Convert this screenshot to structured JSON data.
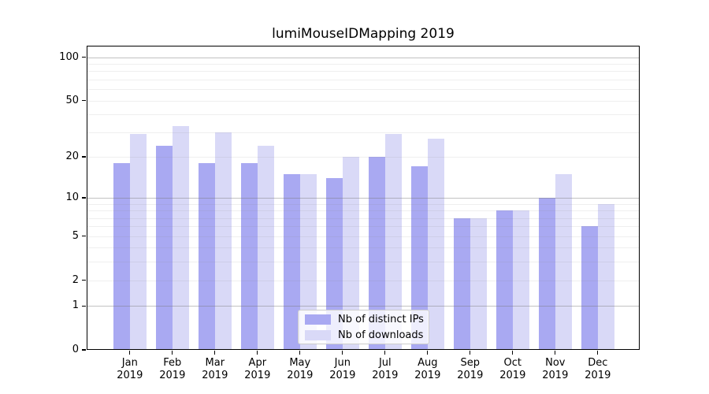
{
  "page": {
    "background": "#ffffff"
  },
  "chart_data": {
    "type": "bar",
    "title": "lumiMouseIDMapping 2019",
    "categories": [
      "Jan 2019",
      "Feb 2019",
      "Mar 2019",
      "Apr 2019",
      "May 2019",
      "Jun 2019",
      "Jul 2019",
      "Aug 2019",
      "Sep 2019",
      "Oct 2019",
      "Nov 2019",
      "Dec 2019"
    ],
    "series": [
      {
        "name": "Nb of distinct IPs",
        "color": "#a9a9f2",
        "values": [
          18,
          24,
          18,
          18,
          15,
          14,
          20,
          17,
          7,
          8,
          10,
          6
        ]
      },
      {
        "name": "Nb of downloads",
        "color": "#d9d9f7",
        "values": [
          29,
          33,
          30,
          24,
          15,
          20,
          29,
          27,
          7,
          8,
          15,
          9
        ]
      }
    ],
    "xlabel": "",
    "ylabel": "",
    "y_axis": {
      "scale": "log1p",
      "ticks": [
        0,
        1,
        2,
        5,
        10,
        20,
        50,
        100
      ],
      "major_gridlines": [
        1,
        10,
        100
      ],
      "minor_gridlines": [
        2,
        3,
        4,
        5,
        6,
        7,
        8,
        9,
        20,
        30,
        40,
        50,
        60,
        70,
        80,
        90
      ],
      "range_top": 120
    },
    "grid": true,
    "legend_position": "lower-center",
    "colors": {
      "axis": "#000000",
      "major_grid": "#c2c2c2",
      "minor_grid": "#efefef",
      "text": "#000000"
    }
  }
}
